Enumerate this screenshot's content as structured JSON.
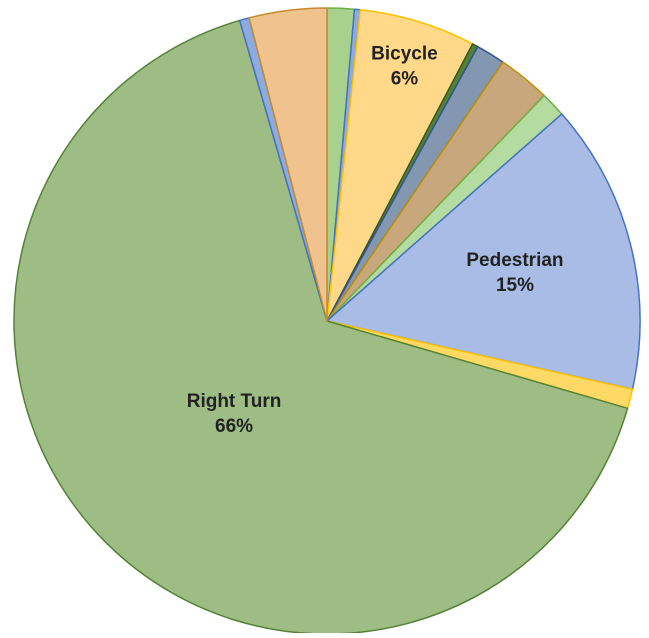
{
  "chart_data": {
    "type": "pie",
    "start_angle": 0,
    "direction": "clockwise",
    "categories": [
      null,
      null,
      "Bicycle",
      null,
      null,
      null,
      null,
      "Pedestrian",
      null,
      "Right Turn",
      null,
      null
    ],
    "values": [
      1.4,
      0.3,
      6,
      0.3,
      1.5,
      2.7,
      1.3,
      15,
      1,
      66,
      0.5,
      4
    ],
    "value_labels": [
      null,
      null,
      "6%",
      null,
      null,
      null,
      null,
      "15%",
      null,
      "66%",
      null,
      null
    ],
    "colors": [
      "#a9d18e",
      "#8faadc",
      "#ffd88a",
      "#548235",
      "#8497b0",
      "#c9a77c",
      "#b4dba0",
      "#a8bce6",
      "#ffd966",
      "#9dbd85",
      "#8faadc",
      "#f0c38e"
    ],
    "edge_colors": [
      "#70ad47",
      "#4472c4",
      "#ffc000",
      "#375623",
      "#2f5597",
      "#bf9000",
      "#70ad47",
      "#4472c4",
      "#ffc000",
      "#548235",
      "#4472c4",
      "#c58b2e"
    ]
  }
}
